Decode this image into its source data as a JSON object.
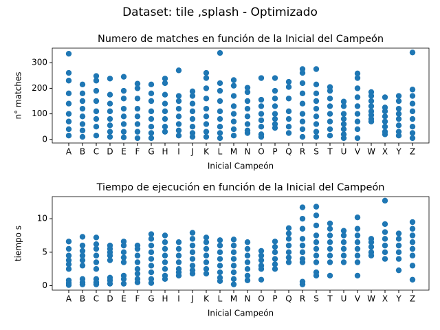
{
  "figure_title": "Dataset: tile ,splash - Optimizado",
  "chart_data": [
    {
      "type": "scatter",
      "title": "Numero de matches en función de la Inicial del Campeón",
      "xlabel": "Inicial Campeón",
      "ylabel": "n° matches",
      "color": "#1f77b4",
      "categories": [
        "A",
        "B",
        "C",
        "D",
        "E",
        "F",
        "G",
        "H",
        "I",
        "J",
        "K",
        "L",
        "M",
        "N",
        "O",
        "P",
        "Q",
        "R",
        "S",
        "T",
        "U",
        "V",
        "W",
        "X",
        "Y",
        "Z"
      ],
      "values": [
        [
          335,
          260,
          230,
          180,
          140,
          100,
          70,
          40,
          15
        ],
        [
          215,
          180,
          150,
          120,
          90,
          60,
          35,
          10
        ],
        [
          248,
          230,
          190,
          150,
          110,
          80,
          50,
          15
        ],
        [
          238,
          175,
          140,
          110,
          80,
          55,
          30,
          10
        ],
        [
          245,
          190,
          160,
          120,
          90,
          60,
          30,
          8
        ],
        [
          218,
          200,
          160,
          120,
          90,
          60,
          30,
          5
        ],
        [
          215,
          180,
          150,
          110,
          80,
          50,
          25,
          5
        ],
        [
          238,
          220,
          175,
          140,
          110,
          80,
          50,
          30
        ],
        [
          270,
          170,
          150,
          120,
          90,
          60,
          35,
          15
        ],
        [
          188,
          170,
          140,
          110,
          80,
          50,
          25,
          10
        ],
        [
          260,
          240,
          200,
          160,
          120,
          90,
          60,
          30,
          10
        ],
        [
          338,
          220,
          190,
          150,
          110,
          80,
          50,
          25,
          5
        ],
        [
          232,
          210,
          170,
          130,
          100,
          70,
          40,
          15
        ],
        [
          202,
          185,
          150,
          120,
          90,
          60,
          35,
          25
        ],
        [
          240,
          155,
          130,
          100,
          75,
          50,
          20,
          10
        ],
        [
          240,
          190,
          160,
          130,
          100,
          80,
          60,
          45
        ],
        [
          225,
          205,
          160,
          110,
          80,
          50,
          25
        ],
        [
          275,
          260,
          220,
          180,
          140,
          100,
          70,
          40,
          10
        ],
        [
          275,
          215,
          180,
          150,
          120,
          90,
          60,
          30,
          10
        ],
        [
          205,
          190,
          160,
          130,
          100,
          70,
          40,
          15
        ],
        [
          148,
          130,
          100,
          80,
          60,
          40,
          20,
          5
        ],
        [
          258,
          240,
          200,
          165,
          130,
          100,
          70,
          40,
          5
        ],
        [
          185,
          170,
          150,
          130,
          110,
          95,
          80,
          70
        ],
        [
          165,
          125,
          110,
          90,
          70,
          50,
          30,
          20
        ],
        [
          170,
          150,
          120,
          100,
          80,
          55,
          30,
          15
        ],
        [
          340,
          195,
          170,
          140,
          110,
          80,
          50,
          25,
          5
        ]
      ],
      "ylim": [
        -14,
        357
      ],
      "yticks": [
        0,
        100,
        200,
        300
      ]
    },
    {
      "type": "scatter",
      "title": "Tiempo de ejecución en función de la Inicial del Campeón",
      "xlabel": "Inicial Campeón",
      "ylabel": "tiempo s",
      "color": "#1f77b4",
      "categories": [
        "A",
        "B",
        "C",
        "D",
        "E",
        "F",
        "G",
        "H",
        "I",
        "J",
        "K",
        "L",
        "M",
        "N",
        "O",
        "P",
        "Q",
        "R",
        "S",
        "T",
        "U",
        "V",
        "W",
        "X",
        "Y",
        "Z"
      ],
      "values": [
        [
          6.6,
          5.5,
          4.5,
          3.8,
          3.2,
          2.5,
          0.8,
          0.4,
          0.1
        ],
        [
          7.3,
          6.0,
          5.2,
          4.5,
          3.8,
          3.0,
          1.0,
          0.5,
          0.2
        ],
        [
          7.2,
          6.2,
          5.5,
          4.5,
          3.5,
          2.5,
          1.0,
          0.5,
          0.2
        ],
        [
          6.0,
          5.5,
          5.0,
          4.5,
          3.8,
          1.2,
          0.8,
          0.3
        ],
        [
          6.6,
          6.0,
          5.0,
          4.2,
          3.5,
          1.5,
          1.0,
          0.3
        ],
        [
          6.0,
          5.5,
          4.5,
          3.5,
          2.5,
          1.8,
          1.0,
          0.5
        ],
        [
          7.7,
          7.0,
          6.0,
          5.0,
          4.0,
          3.0,
          2.0,
          1.0,
          0.4
        ],
        [
          7.5,
          6.5,
          5.5,
          4.5,
          3.5,
          2.5,
          1.5,
          1.0
        ],
        [
          6.5,
          5.5,
          4.5,
          3.5,
          2.5,
          2.0,
          1.5
        ],
        [
          7.9,
          7.0,
          6.0,
          5.0,
          4.0,
          3.0,
          2.3,
          1.8
        ],
        [
          7.2,
          6.5,
          5.5,
          4.5,
          3.5,
          2.5,
          1.8
        ],
        [
          6.8,
          6.0,
          5.0,
          4.0,
          3.0,
          2.0,
          1.2,
          0.7
        ],
        [
          6.9,
          6.0,
          5.0,
          4.0,
          3.0,
          2.0,
          1.0,
          0.2
        ],
        [
          6.5,
          5.5,
          4.5,
          3.5,
          2.5,
          1.5,
          0.8
        ],
        [
          5.2,
          4.5,
          3.8,
          3.0,
          2.5,
          0.9
        ],
        [
          6.6,
          5.8,
          5.0,
          4.0,
          3.2,
          2.5
        ],
        [
          8.6,
          7.8,
          7.0,
          6.0,
          5.0,
          4.2,
          3.5
        ],
        [
          11.7,
          10.0,
          8.5,
          7.0,
          6.0,
          5.0,
          4.0,
          3.5,
          0.6,
          0.2
        ],
        [
          11.8,
          10.5,
          9.0,
          7.5,
          6.5,
          5.5,
          4.5,
          3.5,
          2.0,
          1.5
        ],
        [
          9.3,
          8.5,
          7.5,
          6.5,
          5.5,
          4.5,
          3.5,
          1.5
        ],
        [
          8.2,
          7.5,
          6.5,
          5.5,
          4.5,
          3.5
        ],
        [
          10.2,
          8.5,
          7.5,
          6.5,
          5.5,
          4.5,
          3.5,
          1.5
        ],
        [
          7.0,
          6.5,
          5.8,
          5.0,
          4.5
        ],
        [
          12.7,
          9.2,
          8.0,
          7.0,
          6.0,
          5.0,
          4.0
        ],
        [
          7.8,
          7.0,
          6.0,
          5.0,
          4.0,
          2.3
        ],
        [
          9.5,
          8.5,
          7.5,
          6.5,
          5.5,
          4.5,
          3.0,
          0.9
        ]
      ],
      "ylim": [
        -0.66,
        13.3
      ],
      "yticks": [
        0,
        5,
        10
      ]
    }
  ]
}
